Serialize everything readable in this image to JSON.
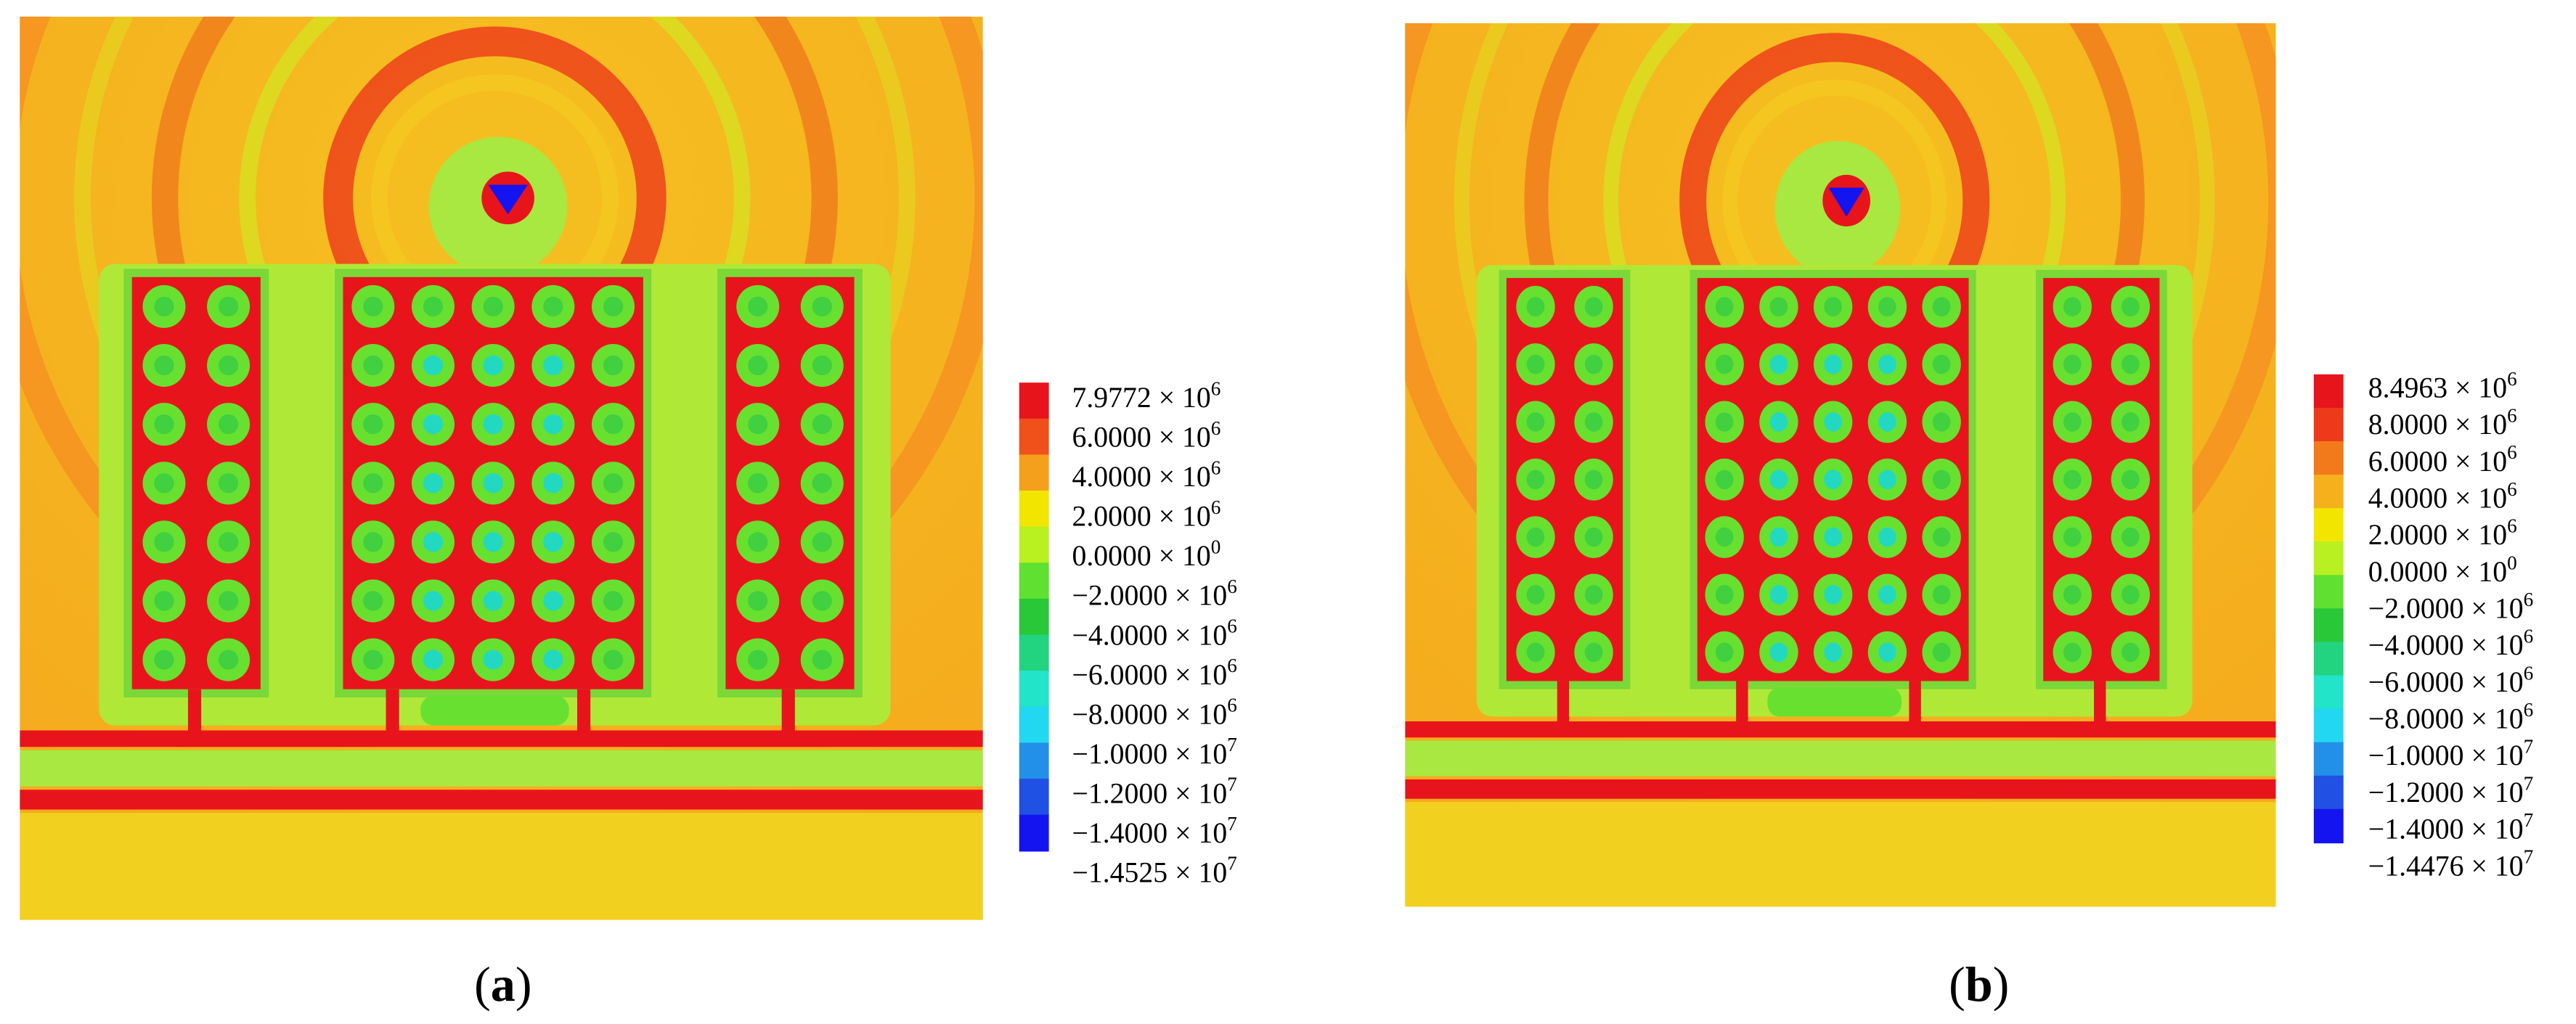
{
  "panels": [
    {
      "caption": {
        "open": "(",
        "label": "a",
        "close": ")"
      },
      "colorbar": {
        "colors": [
          "#e8141c",
          "#f0501a",
          "#f5a01c",
          "#f2e600",
          "#b8f020",
          "#60e030",
          "#28c838",
          "#22d480",
          "#22e4c8",
          "#22d8f0",
          "#2290e8",
          "#2050e4",
          "#1414f0"
        ],
        "labels": [
          {
            "base": "7.9772 × 10",
            "exp": "6"
          },
          {
            "base": "6.0000 × 10",
            "exp": "6"
          },
          {
            "base": "4.0000 × 10",
            "exp": "6"
          },
          {
            "base": "2.0000 × 10",
            "exp": "6"
          },
          {
            "base": "0.0000 × 10",
            "exp": "0"
          },
          {
            "base": "−2.0000 × 10",
            "exp": "6"
          },
          {
            "base": "−4.0000 × 10",
            "exp": "6"
          },
          {
            "base": "−6.0000 × 10",
            "exp": "6"
          },
          {
            "base": "−8.0000 × 10",
            "exp": "6"
          },
          {
            "base": "−1.0000 × 10",
            "exp": "7"
          },
          {
            "base": "−1.2000 × 10",
            "exp": "7"
          },
          {
            "base": "−1.4000 × 10",
            "exp": "7"
          },
          {
            "base": "−1.4525 × 10",
            "exp": "7"
          }
        ]
      }
    },
    {
      "caption": {
        "open": "(",
        "label": "b",
        "close": ")"
      },
      "colorbar": {
        "colors": [
          "#e8141c",
          "#ec3a1a",
          "#f27a1a",
          "#f5b01c",
          "#f2e600",
          "#b8f020",
          "#60e030",
          "#28c838",
          "#22d480",
          "#22e4c8",
          "#22d8f0",
          "#2290e8",
          "#2050e4",
          "#1414f0"
        ],
        "labels": [
          {
            "base": "8.4963 × 10",
            "exp": "6"
          },
          {
            "base": "8.0000 × 10",
            "exp": "6"
          },
          {
            "base": "6.0000 × 10",
            "exp": "6"
          },
          {
            "base": "4.0000 × 10",
            "exp": "6"
          },
          {
            "base": "2.0000 × 10",
            "exp": "6"
          },
          {
            "base": "0.0000 × 10",
            "exp": "0"
          },
          {
            "base": "−2.0000 × 10",
            "exp": "6"
          },
          {
            "base": "−4.0000 × 10",
            "exp": "6"
          },
          {
            "base": "−6.0000 × 10",
            "exp": "6"
          },
          {
            "base": "−8.0000 × 10",
            "exp": "6"
          },
          {
            "base": "−1.0000 × 10",
            "exp": "7"
          },
          {
            "base": "−1.2000 × 10",
            "exp": "7"
          },
          {
            "base": "−1.4000 × 10",
            "exp": "7"
          },
          {
            "base": "−1.4476 × 10",
            "exp": "7"
          }
        ]
      }
    }
  ]
}
